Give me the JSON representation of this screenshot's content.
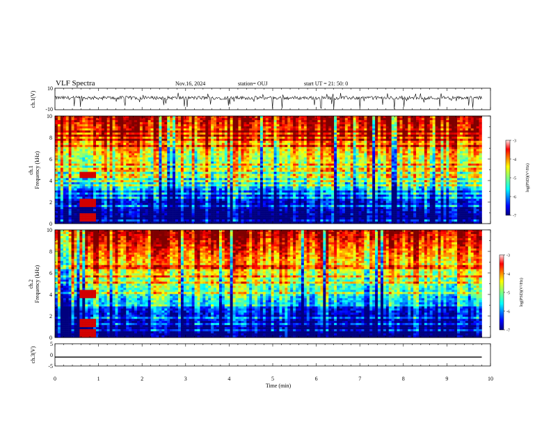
{
  "header": {
    "title": "VLF Spectra",
    "date": "Nov.16, 2024",
    "station": "station= OUJ",
    "start": "start  UT  =   21: 50: 0"
  },
  "chart_data": [
    {
      "type": "line",
      "panel": "ch1-waveform",
      "ylabel": "ch.1(V)",
      "ylim": [
        -10,
        10
      ],
      "yticks": [
        "10",
        "-10"
      ],
      "baseline": 1.0,
      "xlim": [
        0,
        10
      ]
    },
    {
      "type": "heatmap",
      "panel": "ch1-spectrogram",
      "ylabel_top": "ch.1",
      "ylabel": "Frequency  (kHz)",
      "ylim": [
        0,
        10
      ],
      "yticks": [
        "0",
        "2",
        "4",
        "6",
        "8",
        "10"
      ],
      "xlim": [
        0,
        10
      ],
      "data_end_min": 9.8,
      "colorbar": {
        "label": "log(PSD)(V²/Hz)",
        "range": [
          -7,
          -3
        ],
        "ticks": [
          "-3",
          "-4",
          "-5",
          "-6",
          "-7"
        ]
      },
      "features": {
        "emission_bands_khz": [
          4.5,
          1.9,
          0.6
        ],
        "emission_time_range_min": [
          0.55,
          0.95
        ]
      }
    },
    {
      "type": "heatmap",
      "panel": "ch2-spectrogram",
      "ylabel_top": "ch.2",
      "ylabel": "Frequency  (kHz)",
      "ylim": [
        0,
        10
      ],
      "yticks": [
        "0",
        "2",
        "4",
        "6",
        "8",
        "10"
      ],
      "xlim": [
        0,
        10
      ],
      "data_end_min": 9.8,
      "colorbar": {
        "label": "log(PSD)(V²/Hz)",
        "range": [
          -7,
          -3
        ],
        "ticks": [
          "-3",
          "-4",
          "-5",
          "-6",
          "-7"
        ]
      },
      "features": {
        "emission_bands_khz": [
          4.0,
          1.3,
          0.4
        ],
        "emission_time_range_min": [
          0.55,
          0.95
        ]
      }
    },
    {
      "type": "line",
      "panel": "ch3-waveform",
      "ylabel": "ch.3(V)",
      "ylim": [
        -5,
        5
      ],
      "yticks": [
        "5",
        "0",
        "-5"
      ],
      "values_constant": -1.0,
      "xlim": [
        0,
        10
      ],
      "xlabel": "Time  (min)",
      "xticks": [
        "0",
        "1",
        "2",
        "3",
        "4",
        "5",
        "6",
        "7",
        "8",
        "9",
        "10"
      ]
    }
  ],
  "colors": {
    "jet": [
      "#00007f",
      "#0000ff",
      "#007fff",
      "#00ffff",
      "#7fff7f",
      "#ffff00",
      "#ff7f00",
      "#ff0000",
      "#7f0000"
    ]
  }
}
